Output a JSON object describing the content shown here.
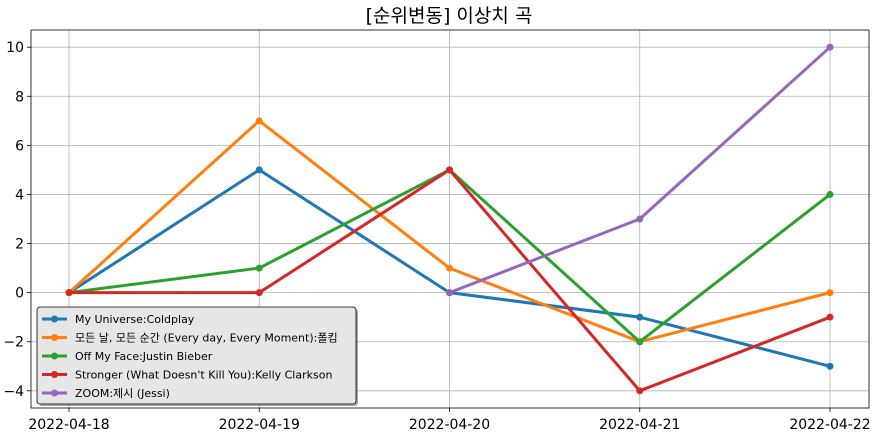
{
  "chart_data": {
    "type": "line",
    "title": "[순위변동] 이상치 곡",
    "xlabel": "",
    "ylabel": "",
    "categories": [
      "2022-04-18",
      "2022-04-19",
      "2022-04-20",
      "2022-04-21",
      "2022-04-22"
    ],
    "ylim": [
      -4.7,
      10.7
    ],
    "yticks": [
      -4,
      -2,
      0,
      2,
      4,
      6,
      8,
      10
    ],
    "grid": true,
    "legend_position": "lower-left",
    "series": [
      {
        "name": "My Universe:Coldplay",
        "color": "#1f77b4",
        "values": [
          0,
          5,
          0,
          -1,
          -3
        ]
      },
      {
        "name": "모든 날, 모든 순간 (Every day, Every Moment):폴킴",
        "color": "#ff7f0e",
        "values": [
          0,
          7,
          1,
          -2,
          0
        ]
      },
      {
        "name": "Off My Face:Justin Bieber",
        "color": "#2ca02c",
        "values": [
          0,
          1,
          5,
          -2,
          4
        ]
      },
      {
        "name": "Stronger (What Doesn't Kill You):Kelly Clarkson",
        "color": "#d62728",
        "values": [
          0,
          0,
          5,
          -4,
          -1
        ]
      },
      {
        "name": "ZOOM:제시 (Jessi)",
        "color": "#9467bd",
        "values": [
          null,
          null,
          0,
          3,
          10
        ]
      }
    ]
  }
}
